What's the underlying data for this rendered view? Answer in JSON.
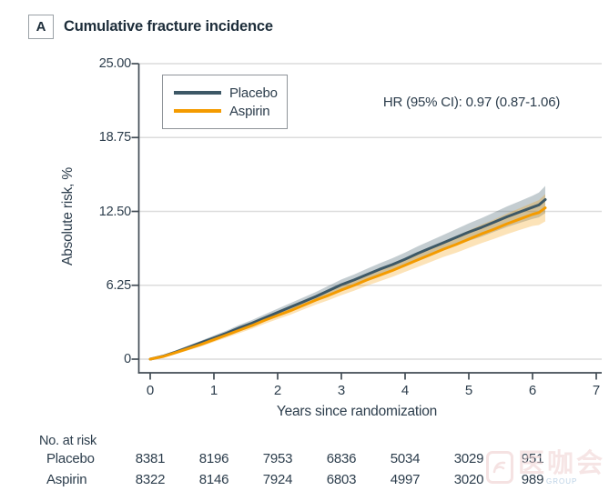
{
  "panel": {
    "label": "A",
    "title": "Cumulative fracture incidence"
  },
  "chart_data": {
    "type": "line",
    "title": "Cumulative fracture incidence",
    "xlabel": "Years since randomization",
    "ylabel": "Absolute risk, %",
    "xlim": [
      0,
      7
    ],
    "ylim": [
      0,
      25
    ],
    "xticks": [
      0,
      1,
      2,
      3,
      4,
      5,
      6,
      7
    ],
    "ytick_labels": [
      "0",
      "6.25",
      "12.50",
      "18.75",
      "25.00"
    ],
    "ytick_values": [
      0,
      6.25,
      12.5,
      18.75,
      25
    ],
    "grid": "horizontal",
    "legend_position": "top-left",
    "annotation": "HR (95% CI): 0.97 (0.87-1.06)",
    "colors": {
      "axis": "#424c55",
      "grid": "#dcdcdc",
      "text": "#2c3d4c",
      "placebo": "#3d5866",
      "aspirin": "#f49b00",
      "placebo_band": "rgba(61,88,102,0.30)",
      "aspirin_band": "rgba(244,155,0,0.28)"
    },
    "series": [
      {
        "name": "Placebo",
        "color": "#3d5866",
        "band_color": "rgba(61,88,102,0.30)",
        "x": [
          0,
          0.2,
          0.4,
          0.6,
          0.8,
          1,
          1.2,
          1.4,
          1.6,
          1.8,
          2,
          2.2,
          2.4,
          2.6,
          2.8,
          3,
          3.2,
          3.4,
          3.6,
          3.8,
          4,
          4.2,
          4.4,
          4.6,
          4.8,
          5,
          5.2,
          5.4,
          5.6,
          5.8,
          6,
          6.1,
          6.2
        ],
        "y": [
          0,
          0.25,
          0.6,
          1.0,
          1.4,
          1.8,
          2.2,
          2.65,
          3.05,
          3.5,
          3.95,
          4.4,
          4.85,
          5.3,
          5.8,
          6.3,
          6.7,
          7.15,
          7.6,
          8.0,
          8.45,
          8.95,
          9.4,
          9.85,
          10.3,
          10.75,
          11.15,
          11.6,
          12.05,
          12.45,
          12.85,
          13.05,
          13.5
        ],
        "ci_halfwidth": [
          0.04,
          0.1,
          0.13,
          0.15,
          0.17,
          0.2,
          0.22,
          0.25,
          0.27,
          0.3,
          0.32,
          0.34,
          0.36,
          0.38,
          0.41,
          0.44,
          0.46,
          0.49,
          0.51,
          0.54,
          0.57,
          0.6,
          0.63,
          0.66,
          0.7,
          0.74,
          0.78,
          0.82,
          0.87,
          0.92,
          0.98,
          1.05,
          1.15
        ]
      },
      {
        "name": "Aspirin",
        "color": "#f49b00",
        "band_color": "rgba(244,155,0,0.28)",
        "x": [
          0,
          0.2,
          0.4,
          0.6,
          0.8,
          1,
          1.2,
          1.4,
          1.6,
          1.8,
          2,
          2.2,
          2.4,
          2.6,
          2.8,
          3,
          3.2,
          3.4,
          3.6,
          3.8,
          4,
          4.2,
          4.4,
          4.6,
          4.8,
          5,
          5.2,
          5.4,
          5.6,
          5.8,
          6,
          6.1,
          6.2
        ],
        "y": [
          0,
          0.22,
          0.55,
          0.9,
          1.25,
          1.65,
          2.05,
          2.45,
          2.85,
          3.3,
          3.7,
          4.1,
          4.55,
          5.0,
          5.4,
          5.85,
          6.25,
          6.7,
          7.1,
          7.5,
          7.95,
          8.4,
          8.85,
          9.3,
          9.7,
          10.15,
          10.6,
          11.0,
          11.45,
          11.85,
          12.25,
          12.4,
          12.8
        ],
        "ci_halfwidth": [
          0.04,
          0.1,
          0.13,
          0.15,
          0.17,
          0.2,
          0.22,
          0.25,
          0.27,
          0.3,
          0.32,
          0.34,
          0.36,
          0.38,
          0.41,
          0.44,
          0.46,
          0.49,
          0.51,
          0.54,
          0.57,
          0.6,
          0.63,
          0.66,
          0.7,
          0.74,
          0.78,
          0.82,
          0.87,
          0.92,
          0.98,
          1.05,
          1.15
        ]
      }
    ]
  },
  "at_risk": {
    "title": "No. at risk",
    "years": [
      0,
      1,
      2,
      3,
      4,
      5,
      6
    ],
    "rows": [
      {
        "label": "Placebo",
        "values": [
          "8381",
          "8196",
          "7953",
          "6836",
          "5034",
          "3029",
          "951"
        ]
      },
      {
        "label": "Aspirin",
        "values": [
          "8322",
          "8146",
          "7924",
          "6803",
          "4997",
          "3020",
          "989"
        ]
      }
    ]
  },
  "watermark": {
    "text": "医咖会",
    "subtext": "GROUP"
  }
}
